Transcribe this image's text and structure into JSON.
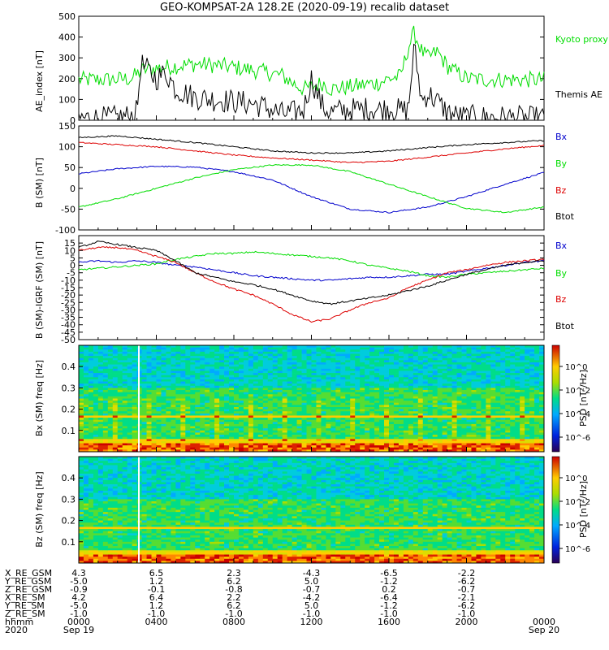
{
  "title": "GEO-KOMPSAT-2A 128.2E (2020-09-19) recalib dataset",
  "colors": {
    "black": "#000000",
    "green": "#00dd00",
    "red": "#dd0000",
    "blue": "#0000cc",
    "white": "#ffffff"
  },
  "chart_data": [
    {
      "type": "line",
      "panel": "ae",
      "ylabel": "AE_index [nT]",
      "ylim": [
        0,
        500
      ],
      "yticks": [
        0,
        100,
        200,
        300,
        400,
        500
      ],
      "x_hours": [
        0,
        1.5,
        2.7,
        3.0,
        3.2,
        4.0,
        4.5,
        5.0,
        6.0,
        7.0,
        8.0,
        9.0,
        9.7,
        10.5,
        11.0,
        11.6,
        12.0,
        12.6,
        13.0,
        14.0,
        15.0,
        15.5,
        16.0,
        16.6,
        17.0,
        17.3,
        17.7,
        18.0,
        18.5,
        19.0,
        19.5,
        20.0,
        21.0,
        22.0,
        23.0,
        24.0
      ],
      "series": [
        {
          "name": "Kyoto proxy AE",
          "color": "#00dd00",
          "values": [
            195,
            195,
            200,
            220,
            240,
            250,
            255,
            260,
            270,
            265,
            255,
            240,
            230,
            215,
            180,
            150,
            160,
            180,
            150,
            160,
            175,
            180,
            200,
            210,
            350,
            420,
            330,
            300,
            330,
            260,
            230,
            200,
            195,
            195,
            195,
            195
          ]
        },
        {
          "name": "Themis AE",
          "color": "#000000",
          "values": [
            10,
            8,
            20,
            40,
            270,
            200,
            230,
            150,
            110,
            100,
            90,
            80,
            60,
            30,
            35,
            50,
            200,
            60,
            40,
            50,
            55,
            50,
            60,
            45,
            50,
            350,
            90,
            130,
            90,
            40,
            20,
            15,
            15,
            12,
            10,
            8
          ]
        }
      ]
    },
    {
      "type": "line",
      "panel": "b_sm",
      "ylabel": "B (SM) [nT]",
      "ylim": [
        -100,
        150
      ],
      "yticks": [
        -100,
        -50,
        0,
        50,
        100,
        150
      ],
      "x_hours": [
        0,
        2,
        4,
        6,
        8,
        10,
        12,
        14,
        16,
        18,
        20,
        22,
        24
      ],
      "series": [
        {
          "name": "Bx",
          "color": "#0000cc",
          "values": [
            35,
            47,
            53,
            51,
            40,
            20,
            -20,
            -50,
            -58,
            -45,
            -20,
            10,
            38
          ]
        },
        {
          "name": "By",
          "color": "#00dd00",
          "values": [
            -45,
            -25,
            0,
            25,
            45,
            56,
            56,
            40,
            10,
            -20,
            -48,
            -58,
            -45
          ]
        },
        {
          "name": "Bz",
          "color": "#dd0000",
          "values": [
            110,
            105,
            100,
            90,
            80,
            73,
            68,
            62,
            65,
            75,
            85,
            95,
            103
          ]
        },
        {
          "name": "Btot",
          "color": "#000000",
          "values": [
            122,
            126,
            118,
            110,
            100,
            90,
            85,
            85,
            90,
            98,
            105,
            110,
            115
          ]
        }
      ]
    },
    {
      "type": "line",
      "panel": "b_minus_igrf",
      "ylabel": "B (SM)-IGRF (SM) [nT]",
      "ylim": [
        -50,
        20
      ],
      "yticks": [
        -50,
        -45,
        -40,
        -35,
        -30,
        -25,
        -20,
        -15,
        -10,
        -5,
        0,
        5,
        10,
        15
      ],
      "x_hours": [
        0,
        1,
        2,
        3,
        4,
        5,
        6,
        7,
        8,
        9,
        10,
        11,
        12,
        13,
        14,
        15,
        16,
        17,
        18,
        19,
        20,
        21,
        22,
        23,
        24
      ],
      "series": [
        {
          "name": "Bx",
          "color": "#0000cc",
          "values": [
            2,
            3,
            2,
            3,
            2,
            0,
            -1,
            -3,
            -5,
            -7,
            -8,
            -9,
            -10,
            -10,
            -9,
            -8,
            -8,
            -7,
            -6,
            -6,
            -4,
            -2,
            0,
            2,
            3
          ]
        },
        {
          "name": "By",
          "color": "#00dd00",
          "values": [
            -3,
            -2,
            -1,
            0,
            1,
            4,
            6,
            8,
            8,
            9,
            8,
            7,
            6,
            5,
            3,
            0,
            -2,
            -4,
            -7,
            -8,
            -6,
            -5,
            -4,
            -3,
            -2
          ]
        },
        {
          "name": "Bz",
          "color": "#dd0000",
          "values": [
            10,
            12,
            12,
            10,
            6,
            2,
            -5,
            -11,
            -16,
            -20,
            -26,
            -33,
            -38,
            -36,
            -30,
            -25,
            -22,
            -15,
            -10,
            -5,
            -3,
            0,
            2,
            3,
            4
          ]
        },
        {
          "name": "Btot",
          "color": "#000000",
          "values": [
            12,
            16,
            14,
            12,
            10,
            3,
            -5,
            -8,
            -11,
            -13,
            -16,
            -20,
            -24,
            -26,
            -24,
            -22,
            -20,
            -17,
            -14,
            -10,
            -6,
            -3,
            0,
            2,
            3
          ]
        }
      ]
    },
    {
      "type": "heatmap",
      "panel": "bx_spec",
      "ylabel": "Bx (SM) freq [Hz]",
      "ylim": [
        0,
        0.5
      ],
      "yticks": [
        0.1,
        0.2,
        0.3,
        0.4
      ],
      "colorbar_label": "PSD [nT²/Hz]",
      "colorbar_ticks": [
        "10^0",
        "10^-2",
        "10^-4",
        "10^-6"
      ],
      "band_freq_hz": 0.167,
      "gap_hour": 3.1
    },
    {
      "type": "heatmap",
      "panel": "bz_spec",
      "ylabel": "Bz (SM) freq [Hz]",
      "ylim": [
        0,
        0.5
      ],
      "yticks": [
        0.1,
        0.2,
        0.3,
        0.4
      ],
      "colorbar_label": "PSD [nT²/Hz]",
      "colorbar_ticks": [
        "10^0",
        "10^-2",
        "10^-4",
        "10^-6"
      ],
      "band_freq_hz": 0.167,
      "gap_hour": 3.1
    }
  ],
  "legends": {
    "ae": [
      "Kyoto proxy AE",
      "Themis AE"
    ],
    "b": [
      "Bx",
      "By",
      "Bz",
      "Btot"
    ]
  },
  "ephemeris": {
    "rows": [
      {
        "label": "X_RE_GSM",
        "values": [
          "4.3",
          "6.5",
          "2.3",
          "-4.3",
          "-6.5",
          "-2.2"
        ]
      },
      {
        "label": "Y_RE_GSM",
        "values": [
          "-5.0",
          "1.2",
          "6.2",
          "5.0",
          "-1.2",
          "-6.2"
        ]
      },
      {
        "label": "Z_RE_GSM",
        "values": [
          "-0.9",
          "-0.1",
          "-0.8",
          "-0.7",
          "0.2",
          "-0.7"
        ]
      },
      {
        "label": "X_RE_SM",
        "values": [
          "4.2",
          "6.4",
          "2.2",
          "-4.2",
          "-6.4",
          "-2.1"
        ]
      },
      {
        "label": "Y_RE_SM",
        "values": [
          "-5.0",
          "1.2",
          "6.2",
          "5.0",
          "-1.2",
          "-6.2"
        ]
      },
      {
        "label": "Z_RE_SM",
        "values": [
          "-1.0",
          "-1.0",
          "-1.0",
          "-1.0",
          "-1.0",
          "-1.0"
        ]
      },
      {
        "label": "hhmm",
        "values": [
          "0000",
          "0400",
          "0800",
          "1200",
          "1600",
          "2000",
          "0000"
        ]
      },
      {
        "label": "2020",
        "values": [
          "Sep 19",
          "",
          "",
          "",
          "",
          "",
          "Sep 20"
        ]
      }
    ]
  }
}
